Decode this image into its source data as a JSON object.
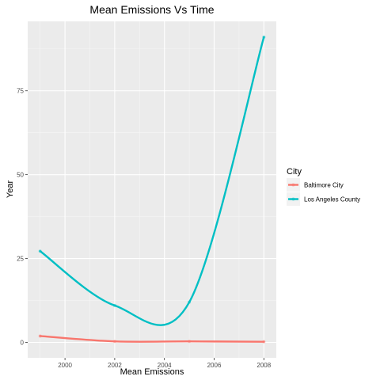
{
  "chart_data": {
    "type": "line",
    "title": "Mean Emissions Vs Time",
    "xlabel": "Mean Emissions",
    "ylabel": "Year",
    "xlim": [
      1998.5,
      2008.5
    ],
    "ylim": [
      -4.6,
      95.7
    ],
    "x_ticks": [
      2000,
      2002,
      2004,
      2006,
      2008
    ],
    "y_ticks": [
      0,
      25,
      50,
      75
    ],
    "grid": true,
    "legend": {
      "title": "City",
      "placement": "right"
    },
    "x": [
      1999,
      2002,
      2005,
      2008
    ],
    "series": [
      {
        "name": "Baltimore City",
        "color": "#F8766D",
        "values": [
          1.9,
          0.3,
          0.3,
          0.2
        ]
      },
      {
        "name": "Los Angeles County",
        "color": "#00BFC4",
        "values": [
          27.2,
          11.0,
          12.0,
          91.0
        ]
      }
    ]
  }
}
